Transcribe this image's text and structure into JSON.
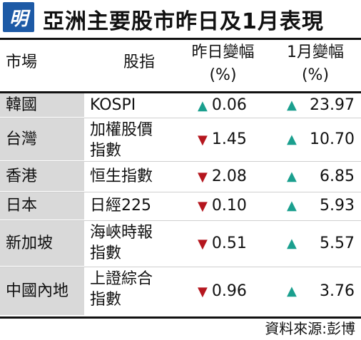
{
  "header": {
    "logo_text": "明",
    "title": "亞洲主要股市昨日及1月表現"
  },
  "columns": {
    "market": "市場",
    "index": "股指",
    "day_change": "昨日變幅",
    "day_unit": "(%)",
    "month_change": "1月變幅",
    "month_unit": "(%)"
  },
  "rows": [
    {
      "market": "韓國",
      "index_line1": "KOSPI",
      "index_line2": "",
      "day_dir": "up",
      "day_value": "0.06",
      "month_dir": "up",
      "month_value": "23.97"
    },
    {
      "market": "台灣",
      "index_line1": "加權股價",
      "index_line2": "指數",
      "day_dir": "down",
      "day_value": "1.45",
      "month_dir": "up",
      "month_value": "10.70"
    },
    {
      "market": "香港",
      "index_line1": "恒生指數",
      "index_line2": "",
      "day_dir": "down",
      "day_value": "2.08",
      "month_dir": "up",
      "month_value": "6.85"
    },
    {
      "market": "日本",
      "index_line1": "日經225",
      "index_line2": "",
      "day_dir": "down",
      "day_value": "0.10",
      "month_dir": "up",
      "month_value": "5.93"
    },
    {
      "market": "新加坡",
      "index_line1": "海峽時報",
      "index_line2": "指數",
      "day_dir": "down",
      "day_value": "0.51",
      "month_dir": "up",
      "month_value": "5.57"
    },
    {
      "market": "中國內地",
      "index_line1": "上證綜合",
      "index_line2": "指數",
      "day_dir": "down",
      "day_value": "0.96",
      "month_dir": "up",
      "month_value": "3.76"
    }
  ],
  "symbols": {
    "up": "▲",
    "down": "▼"
  },
  "colors": {
    "up": "#1a9f8e",
    "down": "#b5161e",
    "logo_bg": "#1d5aa6",
    "row_label_bg": "#d9d9d9"
  },
  "source": "資料來源:彭博"
}
